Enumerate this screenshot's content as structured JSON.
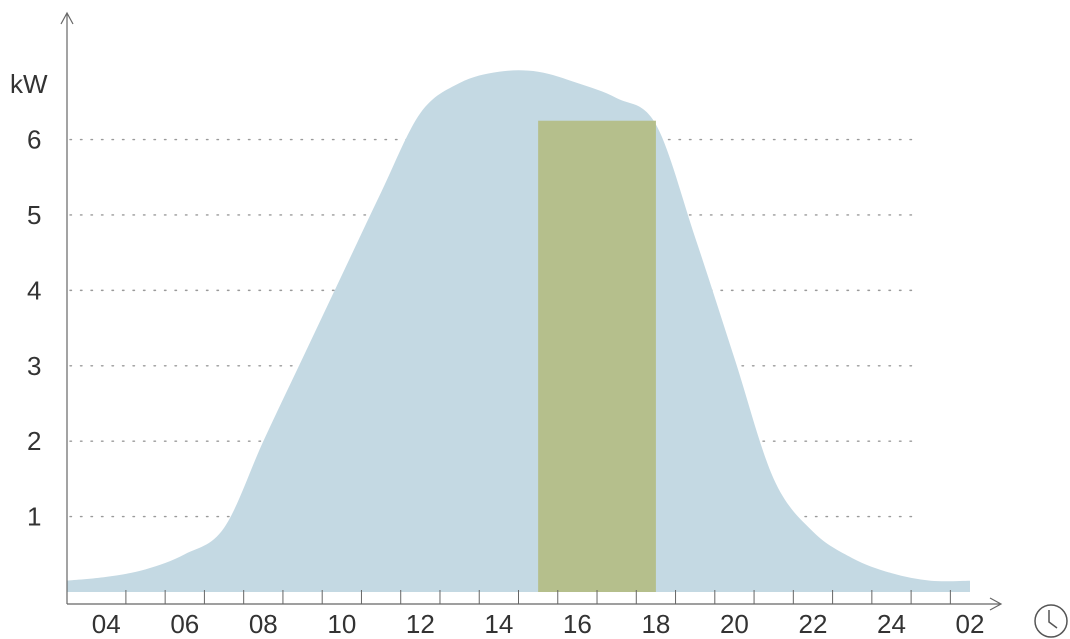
{
  "chart_data": {
    "type": "area",
    "ylabel": "kW",
    "x_ticks": [
      "04",
      "06",
      "08",
      "10",
      "12",
      "14",
      "16",
      "18",
      "20",
      "22",
      "24",
      "02"
    ],
    "y_ticks": [
      "1",
      "2",
      "3",
      "4",
      "5",
      "6"
    ],
    "ylim": [
      0,
      7.4
    ],
    "grid": "horizontal dotted",
    "series": [
      {
        "type": "area",
        "color": "#c4d9e3",
        "x": [
          3,
          4,
          5,
          6,
          7,
          8,
          9,
          10,
          11,
          12,
          13,
          14,
          15,
          16,
          17,
          18,
          19,
          20,
          21,
          22,
          23,
          24,
          25,
          26
        ],
        "y": [
          0.15,
          0.2,
          0.3,
          0.5,
          0.85,
          2.0,
          3.1,
          4.2,
          5.3,
          6.35,
          6.75,
          6.9,
          6.9,
          6.75,
          6.55,
          6.2,
          4.7,
          3.1,
          1.5,
          0.8,
          0.45,
          0.25,
          0.15,
          0.15
        ]
      },
      {
        "type": "bar",
        "color": "#b5bf8c",
        "x_start": 15,
        "x_end": 18,
        "value": 6.25
      }
    ],
    "clock_icon": "clock-icon"
  }
}
